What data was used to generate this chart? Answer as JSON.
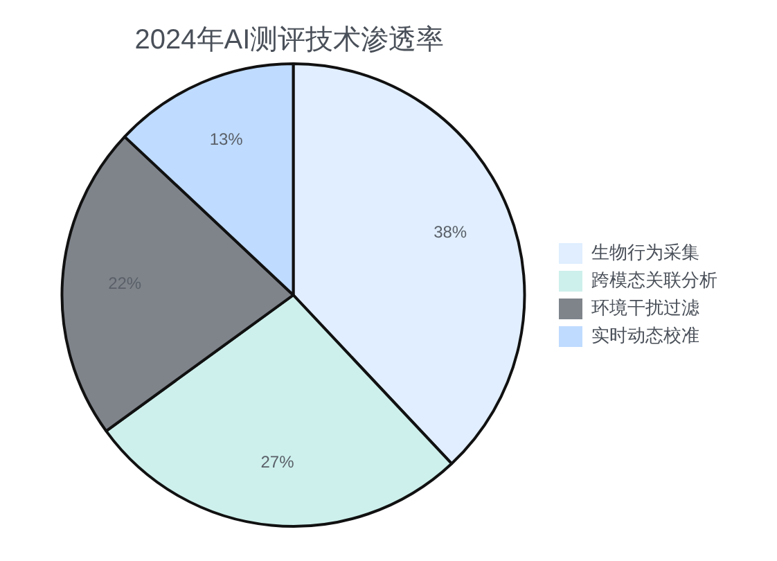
{
  "chart_data": {
    "type": "pie",
    "title": "2024年AI测评技术渗透率",
    "categories": [
      "生物行为采集",
      "跨模态关联分析",
      "环境干扰过滤",
      "实时动态校准"
    ],
    "values": [
      38,
      27,
      22,
      13
    ],
    "colors": [
      "#e0eeff",
      "#cdf0ec",
      "#7f848b",
      "#bfdbff"
    ],
    "value_labels": [
      "38%",
      "27%",
      "22%",
      "13%"
    ],
    "legend": "right"
  }
}
